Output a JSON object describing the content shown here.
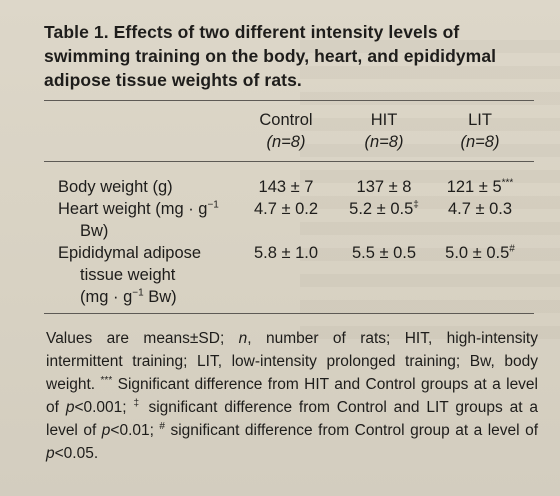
{
  "table": {
    "title": "Table 1.  Effects of two different intensity levels of swimming training on the body, heart, and epididymal adipose tissue weights of rats.",
    "columns": [
      {
        "name": "Control",
        "n": "(n=8)"
      },
      {
        "name": "HIT",
        "n": "(n=8)"
      },
      {
        "name": "LIT",
        "n": "(n=8)"
      }
    ],
    "rows": [
      {
        "label": "Body weight (g)",
        "values": [
          "143 ± 7",
          "137 ± 8",
          "121 ± 5***"
        ]
      },
      {
        "label": "Heart weight (mg · g⁻¹ Bw)",
        "values": [
          "4.7 ± 0.2",
          "5.2 ± 0.5‡",
          "4.7 ± 0.3"
        ]
      },
      {
        "label": "Epididymal adipose tissue weight (mg · g⁻¹ Bw)",
        "values": [
          "5.8 ± 1.0",
          "5.5 ± 0.5",
          "5.0 ± 0.5#"
        ]
      }
    ],
    "row_labels_display": {
      "row0": "Body weight (g)",
      "row1_line1": "Heart weight (mg · g",
      "row1_sup": "−1",
      "row1_line2": "Bw)",
      "row2_line1": "Epididymal adipose",
      "row2_line2": "tissue weight",
      "row2_line3_a": "(mg · g",
      "row2_line3_sup": "−1",
      "row2_line3_b": " Bw)"
    },
    "cells_display": {
      "r0c0": "143 ± 7",
      "r0c1": "137 ± 8",
      "r0c2": "121 ± 5",
      "r0c2_sup": "***",
      "r1c0": "4.7 ± 0.2",
      "r1c1": "5.2 ± 0.5",
      "r1c1_sup": "‡",
      "r1c2": "4.7 ± 0.3",
      "r2c0": "5.8 ± 1.0",
      "r2c1": "5.5 ± 0.5",
      "r2c2": "5.0 ± 0.5",
      "r2c2_sup": "#"
    },
    "footnote": {
      "p1": "Values are means±SD; ",
      "n": "n",
      "p2": ", number of rats; HIT, high-intensity intermittent training; LIT, low-intensity prolonged training; Bw, body weight. ",
      "sup1": "***",
      "p3": " Significant difference from HIT and Control groups at a level of ",
      "pv1": "p",
      "p4": "<0.001; ",
      "sup2": "‡",
      "p5": " significant difference from Control and LIT groups at a level of ",
      "pv2": "p",
      "p6": "<0.01; ",
      "sup3": "#",
      "p7": " significant difference from Control group at a level of ",
      "pv3": "p",
      "p8": "<0.05."
    }
  }
}
